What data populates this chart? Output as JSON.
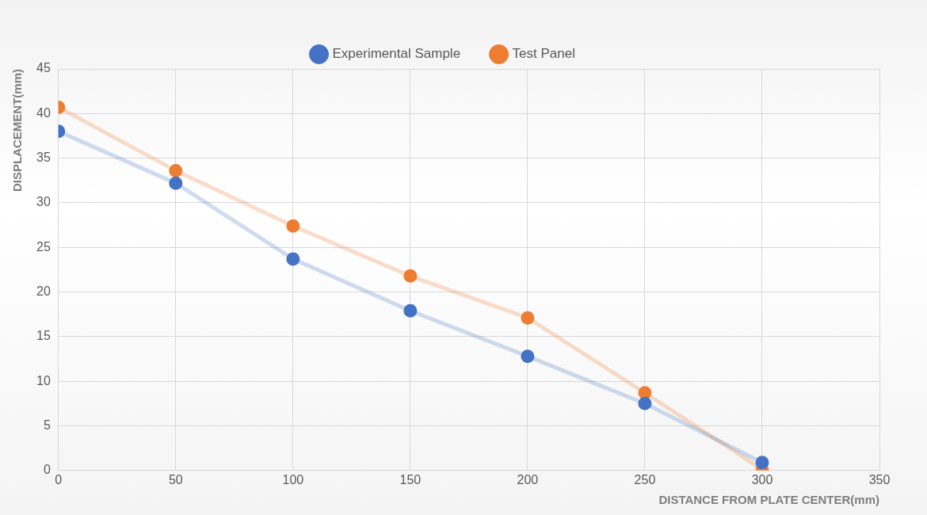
{
  "chart_data": {
    "type": "line",
    "xlabel": "DISTANCE FROM PLATE CENTER(mm)",
    "ylabel": "DISPLACEMENT(mm)",
    "x": [
      0,
      50,
      100,
      150,
      200,
      250,
      300
    ],
    "series": [
      {
        "name": "Experimental Sample",
        "color": "#4472c4",
        "values": [
          38,
          32.2,
          23.7,
          17.9,
          12.8,
          7.5,
          0.9
        ]
      },
      {
        "name": "Test Panel",
        "color": "#ed7d31",
        "values": [
          40.7,
          33.6,
          27.4,
          21.8,
          17.1,
          8.7,
          0.1
        ]
      }
    ],
    "xlim": [
      0,
      350
    ],
    "xticks": [
      0,
      50,
      100,
      150,
      200,
      250,
      300,
      350
    ],
    "ylim": [
      0,
      45
    ],
    "yticks": [
      0,
      5,
      10,
      15,
      20,
      25,
      30,
      35,
      40,
      45
    ],
    "grid": true,
    "legend": "top",
    "marker": "circle",
    "line_style": "solid"
  }
}
